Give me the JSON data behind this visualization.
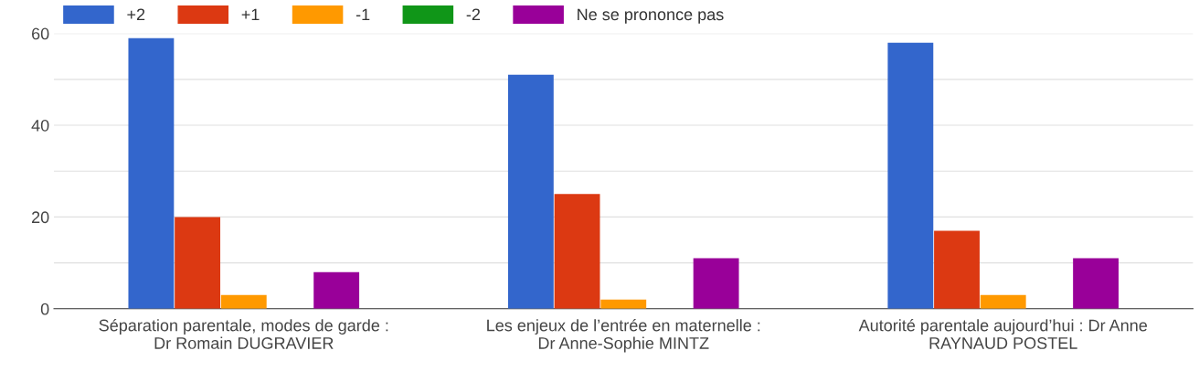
{
  "chart_data": {
    "type": "bar",
    "categories": [
      "Séparation parentale, modes de garde : Dr Romain DUGRAVIER",
      "Les enjeux de l’entrée en maternelle : Dr Anne-Sophie MINTZ",
      "Autorité parentale aujourd’hui : Dr Anne RAYNAUD POSTEL"
    ],
    "series": [
      {
        "name": "+2",
        "color": "#3366cc",
        "values": [
          59,
          51,
          58
        ]
      },
      {
        "name": "+1",
        "color": "#dc3912",
        "values": [
          20,
          25,
          17
        ]
      },
      {
        "name": "-1",
        "color": "#ff9900",
        "values": [
          3,
          2,
          3
        ]
      },
      {
        "name": "-2",
        "color": "#109618",
        "values": [
          0,
          0,
          0
        ]
      },
      {
        "name": "Ne se prononce pas",
        "color": "#990099",
        "values": [
          8,
          11,
          11
        ]
      }
    ],
    "ylim": [
      0,
      60
    ],
    "yticks": [
      0,
      {
        "value": 10,
        "label": null
      },
      20,
      {
        "value": 30,
        "label": null
      },
      40,
      {
        "value": 50,
        "label": null
      },
      60
    ],
    "grid": "y",
    "legend": "top left"
  }
}
